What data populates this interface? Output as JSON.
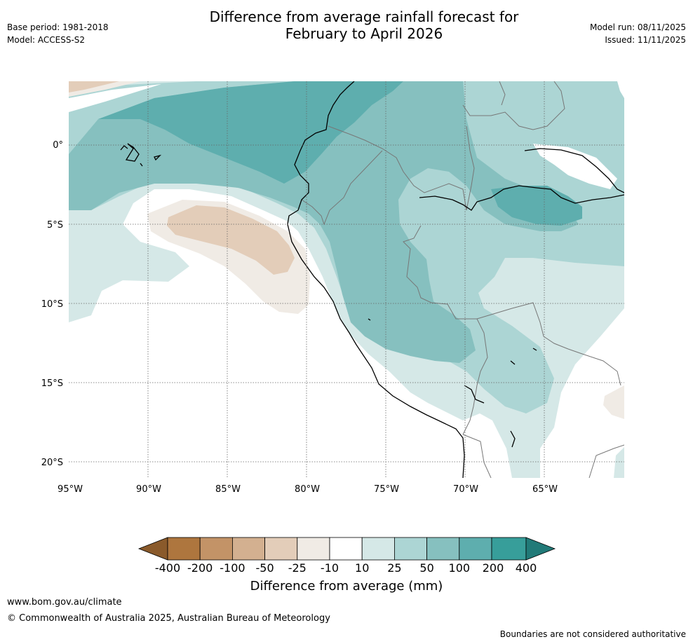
{
  "header": {
    "title_line1": "Difference from average rainfall forecast for",
    "title_line2": "February to April 2026",
    "base_period": "Base period: 1981-2018",
    "model": "Model: ACCESS-S2",
    "model_run": "Model run: 08/11/2025",
    "issued": "Issued: 11/11/2025"
  },
  "map": {
    "lat_labels": [
      "0°",
      "5°S",
      "10°S",
      "15°S",
      "20°S"
    ],
    "lon_labels": [
      "95°W",
      "90°W",
      "85°W",
      "80°W",
      "75°W",
      "70°W",
      "65°W"
    ],
    "colors": {
      "neg400": "#8a5a2b",
      "neg200": "#ae763e",
      "neg100": "#c39367",
      "neg50": "#d3b090",
      "neg25": "#e3cdb9",
      "neg10": "#f0ebe5",
      "neutral": "#ffffff",
      "pos10": "#d5e8e7",
      "pos25": "#acd5d4",
      "pos50": "#86c0bf",
      "pos100": "#5eaeae",
      "pos200": "#379e9a",
      "pos400": "#217a78",
      "coast": "#000000",
      "border": "#777777",
      "grid": "#666666"
    }
  },
  "legend": {
    "ticks": [
      "-400",
      "-200",
      "-100",
      "-50",
      "-25",
      "-10",
      "10",
      "25",
      "50",
      "100",
      "200",
      "400"
    ],
    "title": "Difference from average (mm)"
  },
  "footer": {
    "url": "www.bom.gov.au/climate",
    "copyright": "© Commonwealth of Australia 2025, Australian Bureau of Meteorology",
    "note": "Boundaries are not considered authoritative"
  }
}
